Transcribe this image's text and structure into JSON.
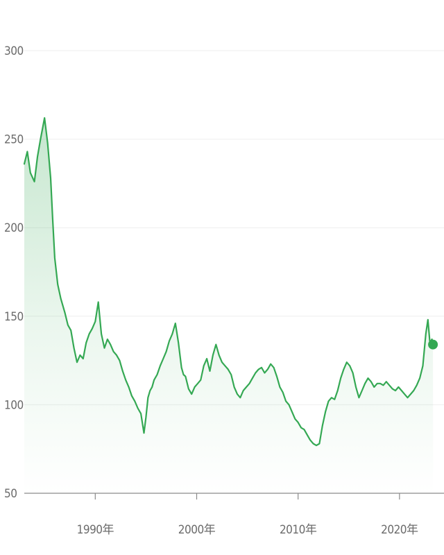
{
  "chart_data": {
    "type": "area",
    "series": [
      {
        "color": "#34a853",
        "x": [
          1983.0,
          1983.3,
          1983.6,
          1984.0,
          1984.3,
          1984.6,
          1985.0,
          1985.3,
          1985.6,
          1985.8,
          1986.0,
          1986.3,
          1986.6,
          1987.0,
          1987.3,
          1987.6,
          1987.9,
          1988.2,
          1988.5,
          1988.8,
          1989.1,
          1989.4,
          1989.7,
          1990.0,
          1990.3,
          1990.6,
          1990.9,
          1991.2,
          1991.5,
          1991.8,
          1992.1,
          1992.4,
          1992.7,
          1993.0,
          1993.3,
          1993.6,
          1993.9,
          1994.2,
          1994.5,
          1994.8,
          1995.0,
          1995.2,
          1995.4,
          1995.6,
          1995.8,
          1996.1,
          1996.4,
          1996.7,
          1997.0,
          1997.3,
          1997.6,
          1997.9,
          1998.2,
          1998.5,
          1998.7,
          1998.9,
          1999.2,
          1999.5,
          1999.8,
          2000.1,
          2000.4,
          2000.7,
          2001.0,
          2001.3,
          2001.6,
          2001.9,
          2002.2,
          2002.5,
          2002.8,
          2003.1,
          2003.4,
          2003.7,
          2004.0,
          2004.3,
          2004.6,
          2004.9,
          2005.2,
          2005.5,
          2005.8,
          2006.1,
          2006.4,
          2006.7,
          2007.0,
          2007.3,
          2007.6,
          2007.9,
          2008.2,
          2008.5,
          2008.8,
          2009.1,
          2009.4,
          2009.7,
          2010.0,
          2010.3,
          2010.6,
          2010.9,
          2011.2,
          2011.5,
          2011.8,
          2012.1,
          2012.4,
          2012.7,
          2013.0,
          2013.3,
          2013.6,
          2013.9,
          2014.2,
          2014.5,
          2014.8,
          2015.1,
          2015.4,
          2015.7,
          2016.0,
          2016.3,
          2016.6,
          2016.9,
          2017.2,
          2017.5,
          2017.8,
          2018.1,
          2018.4,
          2018.7,
          2019.0,
          2019.3,
          2019.6,
          2019.9,
          2020.2,
          2020.5,
          2020.8,
          2021.1,
          2021.4,
          2021.7,
          2022.0,
          2022.3,
          2022.6,
          2022.8,
          2023.0,
          2023.2,
          2023.3
        ],
        "y": [
          236,
          243,
          231,
          226,
          240,
          250,
          262,
          248,
          228,
          205,
          183,
          168,
          160,
          152,
          145,
          142,
          132,
          124,
          128,
          126,
          135,
          140,
          143,
          147,
          158,
          140,
          132,
          137,
          134,
          130,
          128,
          125,
          119,
          114,
          110,
          105,
          102,
          98,
          95,
          84,
          93,
          104,
          108,
          110,
          114,
          117,
          122,
          126,
          130,
          136,
          140,
          146,
          135,
          121,
          117,
          116,
          109,
          106,
          110,
          112,
          114,
          122,
          126,
          119,
          128,
          134,
          128,
          124,
          122,
          120,
          117,
          110,
          106,
          104,
          108,
          110,
          112,
          115,
          118,
          120,
          121,
          118,
          120,
          123,
          121,
          116,
          110,
          107,
          102,
          100,
          96,
          92,
          90,
          87,
          86,
          83,
          80,
          78,
          77,
          78,
          88,
          96,
          102,
          104,
          103,
          108,
          115,
          120,
          124,
          122,
          118,
          110,
          104,
          108,
          112,
          115,
          113,
          110,
          112,
          112,
          111,
          113,
          111,
          109,
          108,
          110,
          108,
          106,
          104,
          106,
          108,
          111,
          115,
          122,
          140,
          148,
          135,
          137,
          134
        ]
      }
    ],
    "xlim": [
      1983.0,
      2023.5
    ],
    "ylim": [
      50,
      300
    ],
    "yticks": [
      50,
      100,
      150,
      200,
      250,
      300
    ],
    "xticks": [
      {
        "value": 1990,
        "label": "1990年"
      },
      {
        "value": 2000,
        "label": "2000年"
      },
      {
        "value": 2010,
        "label": "2010年"
      },
      {
        "value": 2020,
        "label": "2020年"
      }
    ],
    "grid": true,
    "last_point_marker": true
  }
}
